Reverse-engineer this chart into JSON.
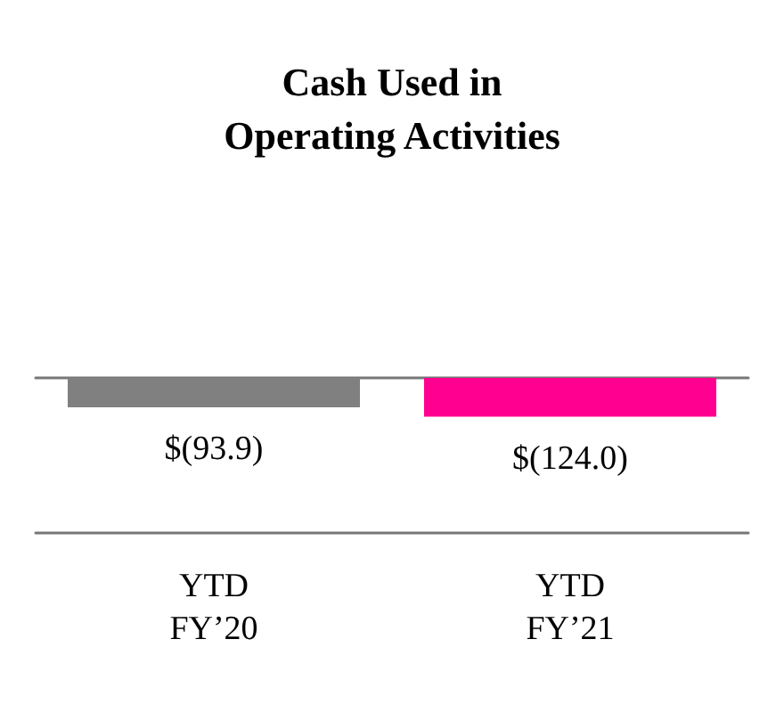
{
  "chart_data": {
    "type": "bar",
    "title": "Cash Used in\nOperating Activities",
    "categories": [
      "YTD\nFY’20",
      "YTD\nFY’21"
    ],
    "values": [
      -93.9,
      -124.0
    ],
    "colors": [
      "#808080",
      "#ff0090"
    ],
    "value_labels": [
      "$(93.9)",
      "$(124.0)"
    ]
  }
}
